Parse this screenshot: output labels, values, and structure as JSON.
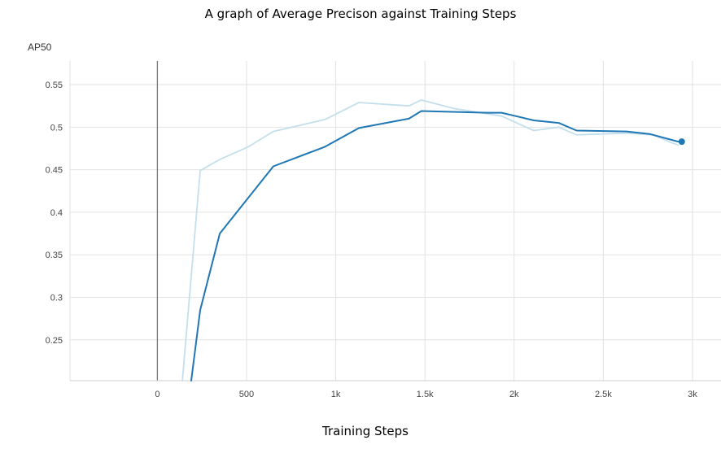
{
  "chart_data": {
    "type": "line",
    "title": "A graph of Average Precison against Training Steps",
    "xlabel": "Training Steps",
    "ylabel": "AP50",
    "xlim": [
      -490,
      3160
    ],
    "ylim": [
      0.202,
      0.573
    ],
    "x_ticks": [
      0,
      500,
      1000,
      1500,
      2000,
      2500,
      3000
    ],
    "x_tick_labels": [
      "0",
      "500",
      "1k",
      "1.5k",
      "2k",
      "2.5k",
      "3k"
    ],
    "y_ticks": [
      0.25,
      0.3,
      0.35,
      0.4,
      0.45,
      0.5,
      0.55
    ],
    "y_tick_labels": [
      "0.25",
      "0.3",
      "0.35",
      "0.4",
      "0.45",
      "0.5",
      "0.55"
    ],
    "grid": true,
    "series": [
      {
        "role": "raw",
        "color": "#c4dfec",
        "x": [
          140,
          240,
          350,
          510,
          650,
          940,
          1130,
          1410,
          1480,
          1660,
          1930,
          2110,
          2250,
          2350,
          2630,
          2780,
          2880,
          2920
        ],
        "y": [
          0.202,
          0.449,
          0.462,
          0.477,
          0.495,
          0.509,
          0.529,
          0.525,
          0.532,
          0.522,
          0.513,
          0.496,
          0.5,
          0.491,
          0.493,
          0.491,
          0.482,
          0.479
        ]
      },
      {
        "role": "smoothed",
        "color": "#1f77b4",
        "x": [
          190,
          240,
          350,
          650,
          940,
          1130,
          1410,
          1480,
          1850,
          1930,
          2110,
          2250,
          2350,
          2630,
          2760,
          2920
        ],
        "y": [
          0.202,
          0.285,
          0.375,
          0.454,
          0.477,
          0.499,
          0.51,
          0.519,
          0.517,
          0.517,
          0.508,
          0.505,
          0.496,
          0.495,
          0.492,
          0.483
        ]
      }
    ],
    "marker": {
      "x": 2940,
      "y": 0.483,
      "color": "#1f77b4"
    }
  }
}
